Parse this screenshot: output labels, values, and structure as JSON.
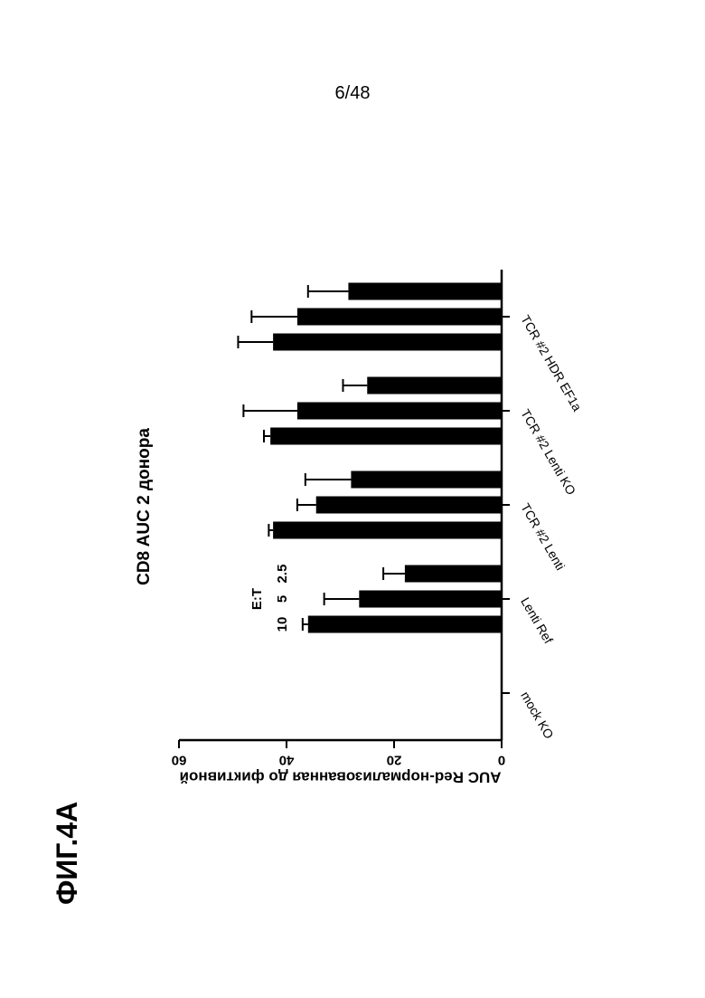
{
  "page_number": "6/48",
  "figure_label": "ФИГ.4А",
  "chart_data": {
    "type": "bar",
    "orientation": "rotated-90",
    "title": "CD8 AUC 2 донора",
    "ylabel": "AUC Red-нормализованная до фиктивной",
    "xlabel": "",
    "ylim": [
      0,
      60
    ],
    "yticks": [
      "0",
      "20",
      "40",
      "60"
    ],
    "legend_title": "E:T",
    "legend_placement": "top-left",
    "categories": [
      "mock KO",
      "Lenti Ref",
      "TCR #2 Lenti",
      "TCR #2 Lenti KO",
      "TCR #2 HDR EF1a"
    ],
    "series": [
      {
        "name": "10",
        "values": [
          0,
          36,
          42.5,
          43,
          42.5
        ],
        "errors": [
          0,
          1.0,
          0.8,
          1.2,
          6.5
        ]
      },
      {
        "name": "5",
        "values": [
          0,
          26.5,
          34.5,
          38,
          38
        ],
        "errors": [
          0,
          6.5,
          3.5,
          10,
          8.5
        ]
      },
      {
        "name": "2.5",
        "values": [
          0,
          18,
          28,
          25,
          28.5
        ],
        "errors": [
          0,
          4,
          8.5,
          4.5,
          7.5
        ]
      }
    ],
    "bar_color": "#000000"
  }
}
